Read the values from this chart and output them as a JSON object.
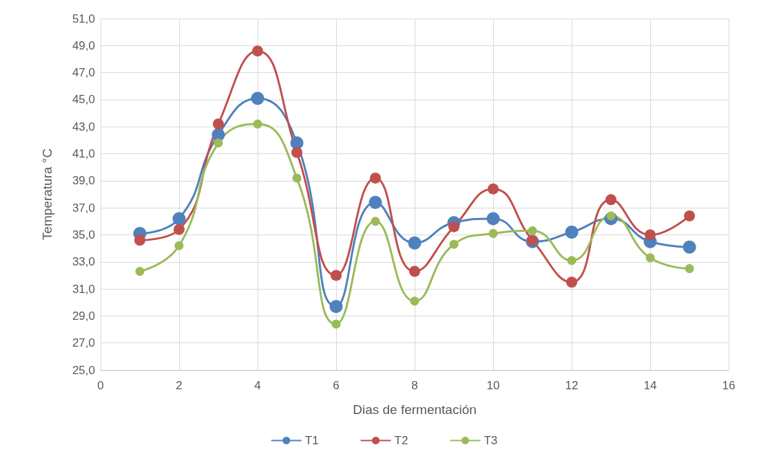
{
  "chart_data": {
    "type": "line",
    "xlabel": "Dias de fermentación",
    "ylabel": "Temperatura °C",
    "x": [
      1,
      2,
      3,
      4,
      5,
      6,
      7,
      8,
      9,
      10,
      11,
      12,
      13,
      14,
      15
    ],
    "series": [
      {
        "name": "T1",
        "color": "#4f81bd",
        "values": [
          35.1,
          36.2,
          42.4,
          45.1,
          41.8,
          29.7,
          37.4,
          34.4,
          35.9,
          36.2,
          34.5,
          35.2,
          36.2,
          34.5,
          34.1
        ]
      },
      {
        "name": "T2",
        "color": "#c0504d",
        "values": [
          34.6,
          35.4,
          43.2,
          48.6,
          41.1,
          32.0,
          39.2,
          32.3,
          35.6,
          38.4,
          34.6,
          31.5,
          37.6,
          35.0,
          36.4
        ]
      },
      {
        "name": "T3",
        "color": "#9bbb59",
        "values": [
          32.3,
          34.2,
          41.8,
          43.2,
          39.2,
          28.4,
          36.0,
          30.1,
          34.3,
          35.1,
          35.3,
          33.1,
          36.4,
          33.3,
          32.5
        ]
      }
    ],
    "xlim": [
      0,
      16
    ],
    "xticks": [
      0,
      2,
      4,
      6,
      8,
      10,
      12,
      14,
      16
    ],
    "ylim": [
      25,
      51
    ],
    "yticks": [
      {
        "value": 25,
        "label": "25,0"
      },
      {
        "value": 27,
        "label": "27,0"
      },
      {
        "value": 29,
        "label": "29,0"
      },
      {
        "value": 31,
        "label": "31,0"
      },
      {
        "value": 33,
        "label": "33,0"
      },
      {
        "value": 35,
        "label": "35,0"
      },
      {
        "value": 37,
        "label": "37,0"
      },
      {
        "value": 39,
        "label": "39,0"
      },
      {
        "value": 41,
        "label": "41,0"
      },
      {
        "value": 43,
        "label": "43,0"
      },
      {
        "value": 45,
        "label": "45,0"
      },
      {
        "value": 47,
        "label": "47,0"
      },
      {
        "value": 49,
        "label": "49,0"
      },
      {
        "value": 51,
        "label": "51,0"
      }
    ],
    "grid": true,
    "legend": "bottom",
    "marker": "circle",
    "line_style": "solid"
  }
}
